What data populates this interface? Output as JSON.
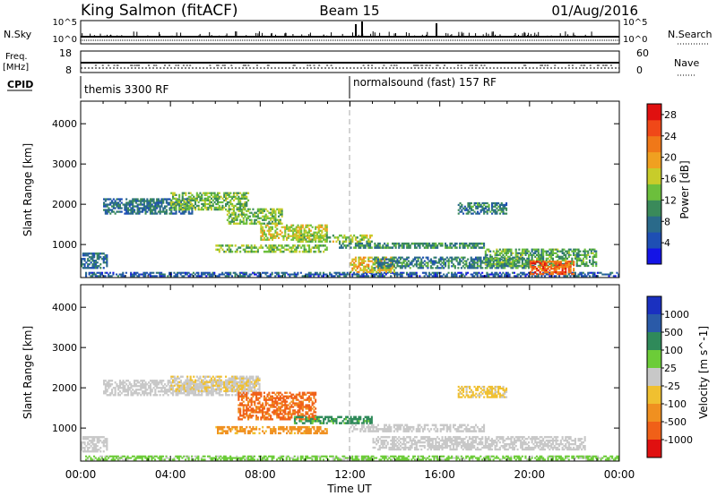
{
  "header": {
    "station": "King Salmon (fitACF)",
    "beam": "Beam 15",
    "date": "01/Aug/2016"
  },
  "status_panels": {
    "nsky_label": "N.Sky",
    "nsky_ticks": [
      "10^5",
      "10^0"
    ],
    "nsearch_label": "N.Search",
    "nsearch_ticks": [
      "10^5",
      "10^0"
    ],
    "freq_label_line1": "Freq.",
    "freq_label_line2": "[MHz]",
    "freq_ticks": [
      "18",
      "8"
    ],
    "nave_label": "Nave",
    "nave_ticks": [
      "60",
      "0"
    ],
    "cpid_label": "CPID",
    "cpid_modes": [
      {
        "name": "themis 3300 RF",
        "start_hour": 0
      },
      {
        "name": "normalsound (fast) 157 RF",
        "start_hour": 12
      }
    ]
  },
  "axes": {
    "ylabel": "Slant Range [km]",
    "xlabel": "Time UT",
    "yticks": [
      "1000",
      "2000",
      "3000",
      "4000"
    ],
    "xticks": [
      "00:00",
      "04:00",
      "08:00",
      "12:00",
      "16:00",
      "20:00",
      "00:00"
    ]
  },
  "colorbars": {
    "power": {
      "label": "Power [dB]",
      "ticks": [
        "4",
        "8",
        "12",
        "16",
        "20",
        "24",
        "28"
      ],
      "colors": [
        "#1414e6",
        "#1e4fb4",
        "#2a6a8a",
        "#3a8a5a",
        "#6cbf3c",
        "#c8cc2a",
        "#f0a020",
        "#f07818",
        "#f04818",
        "#e01010"
      ]
    },
    "velocity": {
      "label": "Velocity [m s^-1]",
      "ticks": [
        "1000",
        "500",
        "100",
        "25",
        "-25",
        "-100",
        "-500",
        "-1000"
      ],
      "colors": [
        "#1a30c0",
        "#2a5aa8",
        "#2f8a5a",
        "#6ccc38",
        "#c8c8c8",
        "#f0c030",
        "#f09020",
        "#f06018",
        "#e01010"
      ]
    }
  },
  "chart_data": [
    {
      "type": "heatmap",
      "title": "Power [dB]",
      "xlabel": "Time UT",
      "ylabel": "Slant Range [km]",
      "xlim": [
        0,
        24
      ],
      "ylim": [
        180,
        4560
      ],
      "clim": [
        0,
        30
      ],
      "regions": [
        {
          "x": [
            0.0,
            1.2
          ],
          "y": [
            400,
            800
          ],
          "value": 7
        },
        {
          "x": [
            0.2,
            24.0
          ],
          "y": [
            200,
            320
          ],
          "value": 6
        },
        {
          "x": [
            1.0,
            5.0
          ],
          "y": [
            1750,
            2150
          ],
          "value": 8
        },
        {
          "x": [
            4.0,
            7.5
          ],
          "y": [
            1850,
            2300
          ],
          "value": 13
        },
        {
          "x": [
            6.5,
            9.0
          ],
          "y": [
            1500,
            1900
          ],
          "value": 14
        },
        {
          "x": [
            8.0,
            11.0
          ],
          "y": [
            1100,
            1500
          ],
          "value": 16
        },
        {
          "x": [
            9.5,
            13.0
          ],
          "y": [
            1050,
            1250
          ],
          "value": 15
        },
        {
          "x": [
            6.0,
            11.0
          ],
          "y": [
            800,
            1000
          ],
          "value": 14
        },
        {
          "x": [
            11.5,
            18.0
          ],
          "y": [
            900,
            1050
          ],
          "value": 10
        },
        {
          "x": [
            12.0,
            14.0
          ],
          "y": [
            300,
            700
          ],
          "value": 18
        },
        {
          "x": [
            13.0,
            20.0
          ],
          "y": [
            400,
            700
          ],
          "value": 9
        },
        {
          "x": [
            18.0,
            23.0
          ],
          "y": [
            450,
            900
          ],
          "value": 12
        },
        {
          "x": [
            20.0,
            22.0
          ],
          "y": [
            250,
            600
          ],
          "value": 24
        },
        {
          "x": [
            16.8,
            19.0
          ],
          "y": [
            1750,
            2050
          ],
          "value": 9
        }
      ]
    },
    {
      "type": "heatmap",
      "title": "Velocity [m s^-1]",
      "xlabel": "Time UT",
      "ylabel": "Slant Range [km]",
      "xlim": [
        0,
        24
      ],
      "ylim": [
        180,
        4560
      ],
      "clim": [
        -1000,
        1000
      ],
      "regions": [
        {
          "x": [
            0.0,
            1.2
          ],
          "y": [
            400,
            800
          ],
          "value": 0
        },
        {
          "x": [
            1.0,
            7.5
          ],
          "y": [
            1800,
            2200
          ],
          "value": 0
        },
        {
          "x": [
            4.0,
            8.0
          ],
          "y": [
            1900,
            2300
          ],
          "value": -20
        },
        {
          "x": [
            7.0,
            10.5
          ],
          "y": [
            1200,
            1900
          ],
          "value": -600
        },
        {
          "x": [
            9.5,
            13.0
          ],
          "y": [
            1100,
            1300
          ],
          "value": 150
        },
        {
          "x": [
            6.0,
            11.0
          ],
          "y": [
            850,
            1050
          ],
          "value": -150
        },
        {
          "x": [
            12.0,
            18.0
          ],
          "y": [
            900,
            1100
          ],
          "value": 0
        },
        {
          "x": [
            13.0,
            22.5
          ],
          "y": [
            450,
            800
          ],
          "value": 0
        },
        {
          "x": [
            16.8,
            19.0
          ],
          "y": [
            1750,
            2050
          ],
          "value": -50
        },
        {
          "x": [
            0.2,
            24.0
          ],
          "y": [
            200,
            320
          ],
          "value": 50
        }
      ]
    }
  ]
}
